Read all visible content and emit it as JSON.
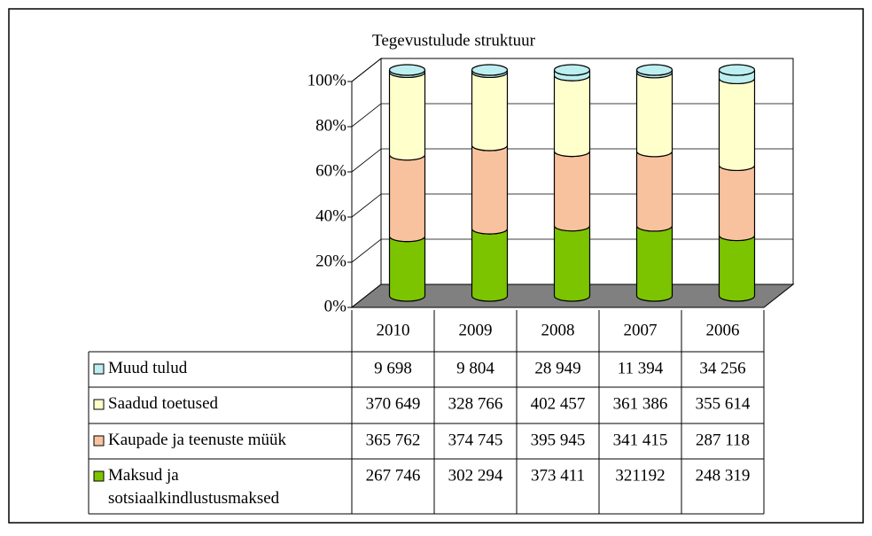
{
  "chart_data": {
    "type": "bar",
    "stacked_percent": true,
    "title": "Tegevustulude struktuur",
    "categories": [
      "2010",
      "2009",
      "2008",
      "2007",
      "2006"
    ],
    "ylim": [
      0,
      100
    ],
    "yticks": [
      {
        "value": 0,
        "label": "0%"
      },
      {
        "value": 20,
        "label": "20%"
      },
      {
        "value": 40,
        "label": "40%"
      },
      {
        "value": 60,
        "label": "60%"
      },
      {
        "value": 80,
        "label": "80%"
      },
      {
        "value": 100,
        "label": "100%"
      }
    ],
    "grid": true,
    "series": [
      {
        "name": "Maksud ja sotsiaalkindlustusmaksed",
        "color": "#7cc400",
        "values": [
          267746,
          302294,
          373411,
          321192,
          248319
        ],
        "value_labels": [
          "267 746",
          "302 294",
          "373 411",
          "321192",
          "248 319"
        ]
      },
      {
        "name": "Kaupade ja teenuste müük",
        "color": "#f9c29e",
        "values": [
          365762,
          374745,
          395945,
          341415,
          287118
        ],
        "value_labels": [
          "365 762",
          "374 745",
          "395 945",
          "341 415",
          "287 118"
        ]
      },
      {
        "name": "Saadud toetused",
        "color": "#ffffcc",
        "values": [
          370649,
          328766,
          402457,
          361386,
          355614
        ],
        "value_labels": [
          "370 649",
          "328 766",
          "402 457",
          "361 386",
          "355 614"
        ]
      },
      {
        "name": "Muud tulud",
        "color": "#bdeef0",
        "values": [
          9698,
          9804,
          28949,
          11394,
          34256
        ],
        "value_labels": [
          "9 698",
          "9 804",
          "28 949",
          "11 394",
          "34 256"
        ]
      }
    ]
  }
}
